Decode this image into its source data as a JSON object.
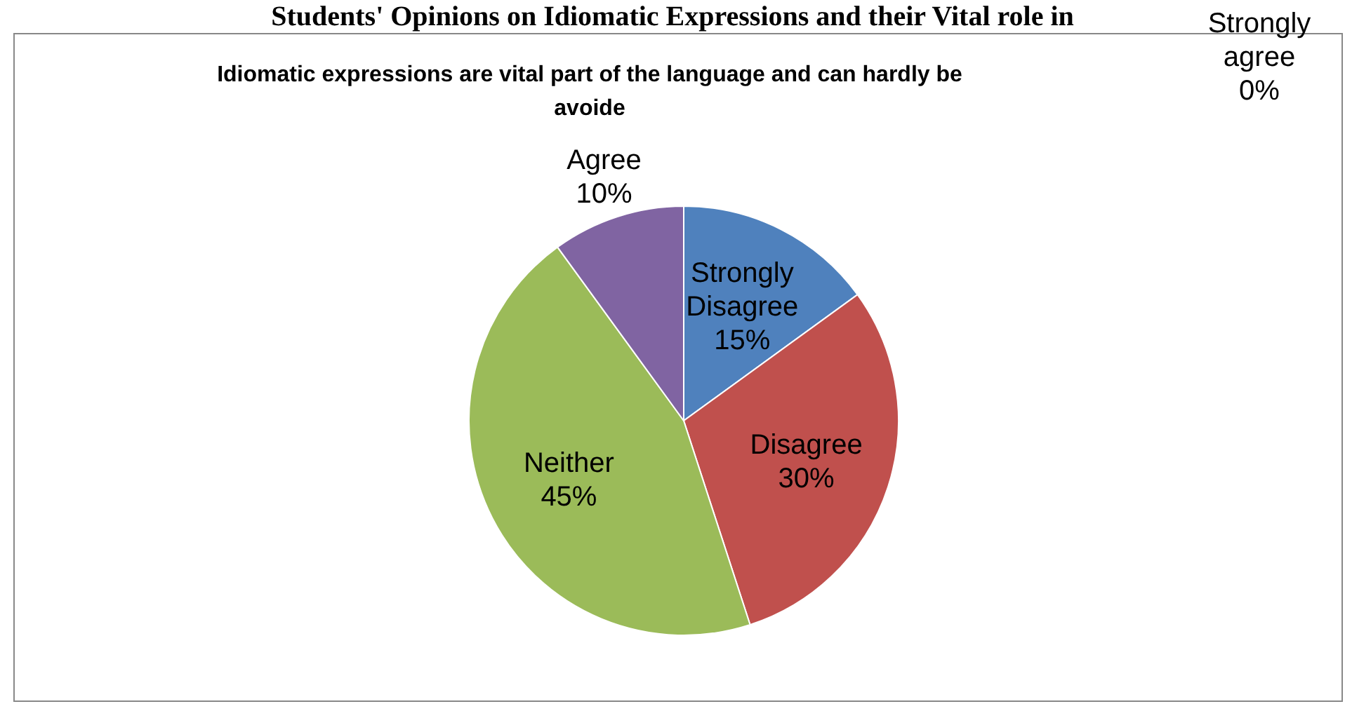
{
  "chart_data": {
    "type": "pie",
    "title": "Idiomatic expressions are vital part of the language and can hardly be avoide",
    "annotations": [
      "Students' Opinions on Idiomatic Expressions and their Vital role in"
    ],
    "categories": [
      "Strongly Disagree",
      "Disagree",
      "Neither",
      "Agree",
      "Strongly agree"
    ],
    "values": [
      15,
      30,
      45,
      10,
      0
    ],
    "value_labels": [
      "15%",
      "30%",
      "45%",
      "10%",
      "0%"
    ],
    "colors": [
      "#4f81bd",
      "#c0504d",
      "#9bbb59",
      "#8064a2",
      "#4bacc6"
    ]
  }
}
